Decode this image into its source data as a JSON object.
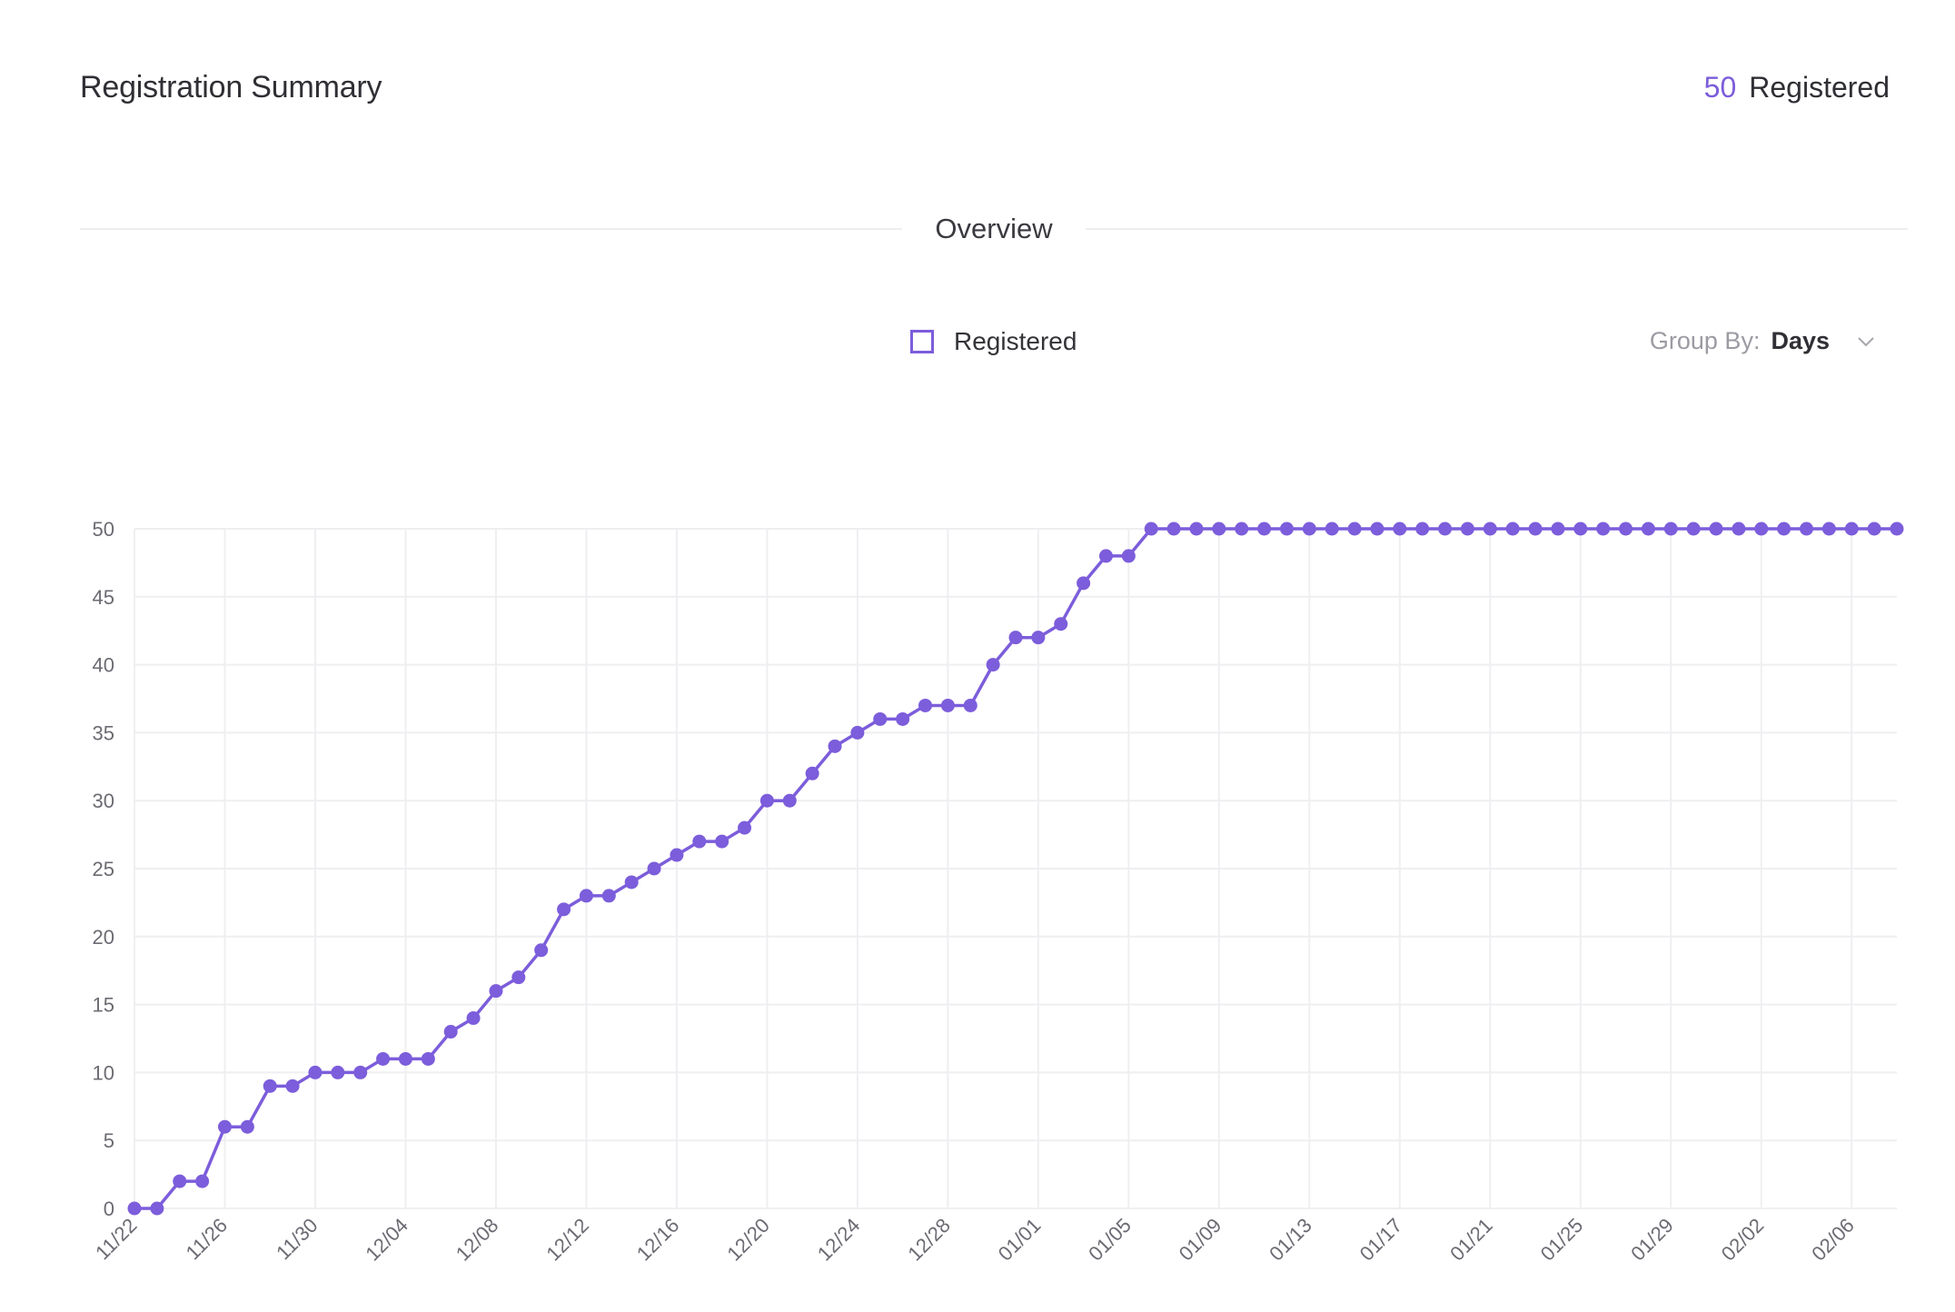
{
  "header": {
    "title": "Registration Summary",
    "count": "50",
    "count_label": "Registered"
  },
  "section": {
    "title": "Overview"
  },
  "legend": {
    "label": "Registered"
  },
  "group_by": {
    "label": "Group By:",
    "value": "Days"
  },
  "colors": {
    "accent": "#7c5ddb",
    "grid": "#efeff2",
    "axis_text": "#6b6b73"
  },
  "chart_data": {
    "type": "line",
    "title": "",
    "xlabel": "",
    "ylabel": "",
    "ylim": [
      0,
      50
    ],
    "yticks": [
      0,
      5,
      10,
      15,
      20,
      25,
      30,
      35,
      40,
      45,
      50
    ],
    "grid": true,
    "x": [
      "11/22",
      "11/23",
      "11/24",
      "11/25",
      "11/26",
      "11/27",
      "11/28",
      "11/29",
      "11/30",
      "12/01",
      "12/02",
      "12/03",
      "12/04",
      "12/05",
      "12/06",
      "12/07",
      "12/08",
      "12/09",
      "12/10",
      "12/11",
      "12/12",
      "12/13",
      "12/14",
      "12/15",
      "12/16",
      "12/17",
      "12/18",
      "12/19",
      "12/20",
      "12/21",
      "12/22",
      "12/23",
      "12/24",
      "12/25",
      "12/26",
      "12/27",
      "12/28",
      "12/29",
      "12/30",
      "12/31",
      "01/01",
      "01/02",
      "01/03",
      "01/04",
      "01/05",
      "01/06",
      "01/07",
      "01/08",
      "01/09",
      "01/10",
      "01/11",
      "01/12",
      "01/13",
      "01/14",
      "01/15",
      "01/16",
      "01/17",
      "01/18",
      "01/19",
      "01/20",
      "01/21",
      "01/22",
      "01/23",
      "01/24",
      "01/25",
      "01/26",
      "01/27",
      "01/28",
      "01/29",
      "01/30",
      "01/31",
      "02/01",
      "02/02",
      "02/03",
      "02/04",
      "02/05",
      "02/06",
      "02/07",
      "02/08"
    ],
    "xtick_labels": [
      "11/22",
      "11/26",
      "11/30",
      "12/04",
      "12/08",
      "12/12",
      "12/16",
      "12/20",
      "12/24",
      "12/28",
      "01/01",
      "01/05",
      "01/09",
      "01/13",
      "01/17",
      "01/21",
      "01/25",
      "01/29",
      "02/02",
      "02/06"
    ],
    "series": [
      {
        "name": "Registered",
        "values": [
          0,
          0,
          2,
          2,
          6,
          6,
          9,
          9,
          10,
          10,
          10,
          11,
          11,
          11,
          13,
          14,
          16,
          17,
          19,
          22,
          23,
          23,
          24,
          25,
          26,
          27,
          27,
          28,
          30,
          30,
          32,
          34,
          35,
          36,
          36,
          37,
          37,
          37,
          40,
          42,
          42,
          43,
          46,
          48,
          48,
          50,
          50,
          50,
          50,
          50,
          50,
          50,
          50,
          50,
          50,
          50,
          50,
          50,
          50,
          50,
          50,
          50,
          50,
          50,
          50,
          50,
          50,
          50,
          50,
          50,
          50,
          50,
          50,
          50,
          50,
          50,
          50,
          50,
          50
        ]
      }
    ]
  }
}
